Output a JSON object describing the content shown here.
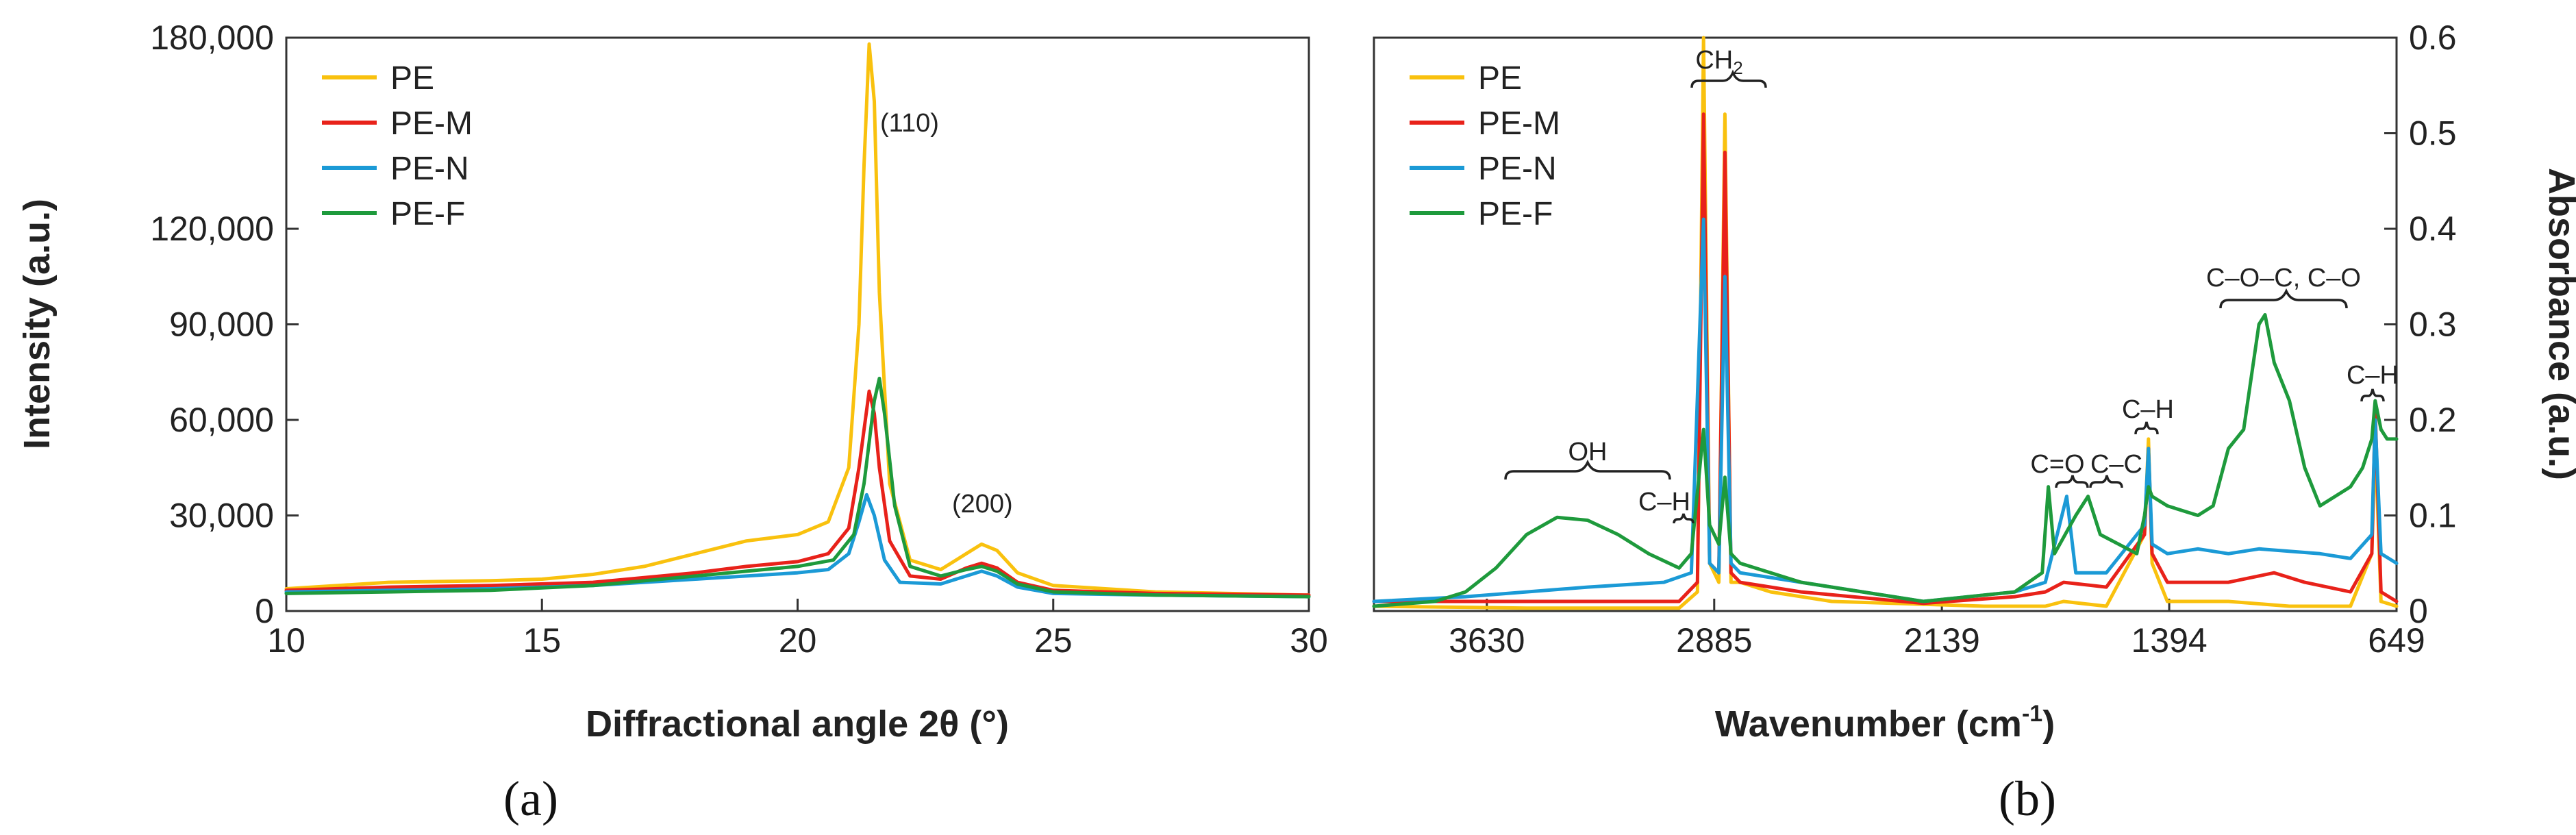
{
  "chart_data": [
    {
      "type": "line",
      "panel_label": "(a)",
      "xlabel": "Diffractional angle 2θ (°)",
      "ylabel": "Intensity (a.u.)",
      "xlim": [
        10,
        30
      ],
      "ylim": [
        0,
        180000
      ],
      "xticks": [
        10,
        15,
        20,
        25,
        30
      ],
      "yticks": [
        0,
        30000,
        60000,
        90000,
        120000,
        180000
      ],
      "ytick_labels": [
        "0",
        "30,000",
        "60,000",
        "90,000",
        "120,000",
        "180,000"
      ],
      "legend": {
        "position": "top-left"
      },
      "annotations": [
        {
          "text": "(110)",
          "x": 22.3,
          "y": 127000
        },
        {
          "text": "(200)",
          "x": 23.6,
          "y": 26000
        }
      ],
      "series": [
        {
          "name": "PE",
          "color": "#F9C10E",
          "points": [
            [
              10,
              7000
            ],
            [
              12,
              9000
            ],
            [
              14,
              9500
            ],
            [
              15,
              10000
            ],
            [
              16,
              11500
            ],
            [
              17,
              14000
            ],
            [
              18,
              18000
            ],
            [
              19,
              22000
            ],
            [
              20,
              24000
            ],
            [
              20.6,
              28000
            ],
            [
              21,
              45000
            ],
            [
              21.2,
              90000
            ],
            [
              21.3,
              140000
            ],
            [
              21.4,
              178000
            ],
            [
              21.5,
              160000
            ],
            [
              21.6,
              100000
            ],
            [
              21.8,
              40000
            ],
            [
              22.2,
              16000
            ],
            [
              22.8,
              13000
            ],
            [
              23.3,
              18000
            ],
            [
              23.6,
              21000
            ],
            [
              23.9,
              19000
            ],
            [
              24.3,
              12000
            ],
            [
              25,
              8000
            ],
            [
              27,
              6000
            ],
            [
              30,
              5000
            ]
          ]
        },
        {
          "name": "PE-M",
          "color": "#E8221A",
          "points": [
            [
              10,
              6500
            ],
            [
              12,
              7500
            ],
            [
              14,
              8000
            ],
            [
              16,
              9000
            ],
            [
              18,
              12000
            ],
            [
              19,
              14000
            ],
            [
              20,
              15500
            ],
            [
              20.6,
              18000
            ],
            [
              21,
              26000
            ],
            [
              21.2,
              45000
            ],
            [
              21.4,
              69000
            ],
            [
              21.5,
              62000
            ],
            [
              21.6,
              45000
            ],
            [
              21.8,
              22000
            ],
            [
              22.2,
              11000
            ],
            [
              22.8,
              10000
            ],
            [
              23.3,
              13500
            ],
            [
              23.6,
              15000
            ],
            [
              23.9,
              13500
            ],
            [
              24.3,
              9000
            ],
            [
              25,
              6500
            ],
            [
              27,
              5500
            ],
            [
              30,
              5000
            ]
          ]
        },
        {
          "name": "PE-N",
          "color": "#1B9AD6",
          "points": [
            [
              10,
              6000
            ],
            [
              12,
              6500
            ],
            [
              14,
              7000
            ],
            [
              16,
              8000
            ],
            [
              18,
              10000
            ],
            [
              19,
              11000
            ],
            [
              20,
              12000
            ],
            [
              20.6,
              13000
            ],
            [
              21,
              18000
            ],
            [
              21.2,
              28000
            ],
            [
              21.35,
              36500
            ],
            [
              21.5,
              30000
            ],
            [
              21.7,
              16000
            ],
            [
              22,
              9000
            ],
            [
              22.8,
              8500
            ],
            [
              23.3,
              11000
            ],
            [
              23.6,
              12500
            ],
            [
              23.9,
              11000
            ],
            [
              24.3,
              7500
            ],
            [
              25,
              5500
            ],
            [
              27,
              5000
            ],
            [
              30,
              4500
            ]
          ]
        },
        {
          "name": "PE-F",
          "color": "#1E9A3C",
          "points": [
            [
              10,
              5500
            ],
            [
              12,
              6000
            ],
            [
              14,
              6500
            ],
            [
              16,
              8000
            ],
            [
              18,
              11000
            ],
            [
              19,
              12500
            ],
            [
              20,
              14000
            ],
            [
              20.7,
              16000
            ],
            [
              21.1,
              24000
            ],
            [
              21.3,
              40000
            ],
            [
              21.5,
              66000
            ],
            [
              21.6,
              73000
            ],
            [
              21.7,
              62000
            ],
            [
              21.9,
              33000
            ],
            [
              22.2,
              14000
            ],
            [
              22.8,
              11000
            ],
            [
              23.3,
              13000
            ],
            [
              23.6,
              14000
            ],
            [
              23.9,
              12500
            ],
            [
              24.3,
              8500
            ],
            [
              25,
              6000
            ],
            [
              27,
              5000
            ],
            [
              30,
              4500
            ]
          ]
        }
      ]
    },
    {
      "type": "line",
      "panel_label": "(b)",
      "xlabel": "Wavenumber (cm",
      "xlabel_superscript": "-1",
      "xlabel_suffix": ")",
      "ylabel": "Absorbance (a.u.)",
      "xlim": [
        4000,
        649
      ],
      "ylim": [
        0,
        0.6
      ],
      "xticks": [
        3630,
        2885,
        2139,
        1394,
        649
      ],
      "yticks": [
        0,
        0.1,
        0.2,
        0.3,
        0.4,
        0.5,
        0.6
      ],
      "ytick_labels": [
        "0",
        "0.1",
        "0.2",
        "0.3",
        "0.4",
        "0.5",
        "0.6"
      ],
      "legend": {
        "position": "top-left"
      },
      "annotations": [
        {
          "text": "OH",
          "x": 3430,
          "y": 0.148
        },
        {
          "text": "C–H",
          "x": 2960,
          "y": 0.105
        },
        {
          "text": "CH",
          "subscript": "2",
          "x": 2880,
          "y": 0.56
        },
        {
          "text": "C=O",
          "x": 1760,
          "y": 0.145
        },
        {
          "text": "C–C",
          "x": 1610,
          "y": 0.145
        },
        {
          "text": "C–H",
          "x": 1455,
          "y": 0.195
        },
        {
          "text": "C–O–C, C–O",
          "x": 1090,
          "y": 0.328
        },
        {
          "text": "C–H",
          "x": 725,
          "y": 0.245
        }
      ],
      "series": [
        {
          "name": "PE",
          "color": "#F9C10E",
          "points": [
            [
              4000,
              0.005
            ],
            [
              3500,
              0.003
            ],
            [
              3000,
              0.003
            ],
            [
              2940,
              0.02
            ],
            [
              2920,
              0.6
            ],
            [
              2900,
              0.05
            ],
            [
              2870,
              0.03
            ],
            [
              2850,
              0.52
            ],
            [
              2830,
              0.03
            ],
            [
              2800,
              0.03
            ],
            [
              2700,
              0.02
            ],
            [
              2500,
              0.01
            ],
            [
              2000,
              0.005
            ],
            [
              1800,
              0.005
            ],
            [
              1740,
              0.01
            ],
            [
              1600,
              0.005
            ],
            [
              1475,
              0.08
            ],
            [
              1462,
              0.18
            ],
            [
              1450,
              0.05
            ],
            [
              1400,
              0.01
            ],
            [
              1200,
              0.01
            ],
            [
              1000,
              0.005
            ],
            [
              800,
              0.005
            ],
            [
              730,
              0.06
            ],
            [
              719,
              0.18
            ],
            [
              700,
              0.01
            ],
            [
              649,
              0.005
            ]
          ]
        },
        {
          "name": "PE-M",
          "color": "#E8221A",
          "points": [
            [
              4000,
              0.01
            ],
            [
              3700,
              0.01
            ],
            [
              3300,
              0.01
            ],
            [
              3000,
              0.01
            ],
            [
              2940,
              0.03
            ],
            [
              2920,
              0.52
            ],
            [
              2900,
              0.05
            ],
            [
              2870,
              0.04
            ],
            [
              2850,
              0.48
            ],
            [
              2830,
              0.04
            ],
            [
              2800,
              0.03
            ],
            [
              2600,
              0.02
            ],
            [
              2200,
              0.008
            ],
            [
              1900,
              0.015
            ],
            [
              1800,
              0.02
            ],
            [
              1740,
              0.03
            ],
            [
              1600,
              0.025
            ],
            [
              1475,
              0.08
            ],
            [
              1462,
              0.17
            ],
            [
              1450,
              0.06
            ],
            [
              1400,
              0.03
            ],
            [
              1200,
              0.03
            ],
            [
              1050,
              0.04
            ],
            [
              950,
              0.03
            ],
            [
              800,
              0.02
            ],
            [
              730,
              0.06
            ],
            [
              719,
              0.21
            ],
            [
              700,
              0.02
            ],
            [
              649,
              0.01
            ]
          ]
        },
        {
          "name": "PE-N",
          "color": "#1B9AD6",
          "points": [
            [
              4000,
              0.01
            ],
            [
              3700,
              0.015
            ],
            [
              3300,
              0.025
            ],
            [
              3050,
              0.03
            ],
            [
              2960,
              0.04
            ],
            [
              2920,
              0.41
            ],
            [
              2900,
              0.05
            ],
            [
              2870,
              0.04
            ],
            [
              2850,
              0.35
            ],
            [
              2830,
              0.05
            ],
            [
              2800,
              0.04
            ],
            [
              2600,
              0.03
            ],
            [
              2200,
              0.01
            ],
            [
              1900,
              0.02
            ],
            [
              1800,
              0.03
            ],
            [
              1730,
              0.12
            ],
            [
              1700,
              0.04
            ],
            [
              1600,
              0.04
            ],
            [
              1475,
              0.09
            ],
            [
              1462,
              0.17
            ],
            [
              1450,
              0.07
            ],
            [
              1400,
              0.06
            ],
            [
              1300,
              0.065
            ],
            [
              1200,
              0.06
            ],
            [
              1100,
              0.065
            ],
            [
              900,
              0.06
            ],
            [
              800,
              0.055
            ],
            [
              730,
              0.08
            ],
            [
              719,
              0.2
            ],
            [
              700,
              0.06
            ],
            [
              649,
              0.05
            ]
          ]
        },
        {
          "name": "PE-F",
          "color": "#1E9A3C",
          "points": [
            [
              4000,
              0.005
            ],
            [
              3800,
              0.01
            ],
            [
              3700,
              0.02
            ],
            [
              3600,
              0.045
            ],
            [
              3500,
              0.08
            ],
            [
              3400,
              0.098
            ],
            [
              3300,
              0.095
            ],
            [
              3200,
              0.08
            ],
            [
              3100,
              0.06
            ],
            [
              3000,
              0.045
            ],
            [
              2960,
              0.06
            ],
            [
              2920,
              0.19
            ],
            [
              2900,
              0.09
            ],
            [
              2870,
              0.07
            ],
            [
              2850,
              0.14
            ],
            [
              2830,
              0.06
            ],
            [
              2800,
              0.05
            ],
            [
              2600,
              0.03
            ],
            [
              2200,
              0.01
            ],
            [
              1900,
              0.02
            ],
            [
              1810,
              0.04
            ],
            [
              1790,
              0.13
            ],
            [
              1770,
              0.06
            ],
            [
              1700,
              0.1
            ],
            [
              1660,
              0.12
            ],
            [
              1620,
              0.08
            ],
            [
              1500,
              0.06
            ],
            [
              1475,
              0.1
            ],
            [
              1462,
              0.13
            ],
            [
              1450,
              0.12
            ],
            [
              1400,
              0.11
            ],
            [
              1300,
              0.1
            ],
            [
              1250,
              0.11
            ],
            [
              1200,
              0.17
            ],
            [
              1150,
              0.19
            ],
            [
              1100,
              0.3
            ],
            [
              1080,
              0.31
            ],
            [
              1050,
              0.26
            ],
            [
              1000,
              0.22
            ],
            [
              950,
              0.15
            ],
            [
              900,
              0.11
            ],
            [
              850,
              0.12
            ],
            [
              800,
              0.13
            ],
            [
              760,
              0.15
            ],
            [
              730,
              0.18
            ],
            [
              719,
              0.22
            ],
            [
              700,
              0.19
            ],
            [
              680,
              0.18
            ],
            [
              649,
              0.18
            ]
          ]
        }
      ]
    }
  ]
}
